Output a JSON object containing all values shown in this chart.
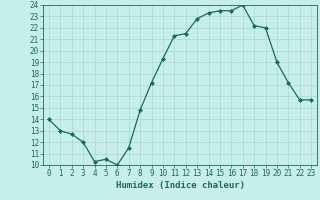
{
  "x": [
    0,
    1,
    2,
    3,
    4,
    5,
    6,
    7,
    8,
    9,
    10,
    11,
    12,
    13,
    14,
    15,
    16,
    17,
    18,
    19,
    20,
    21,
    22,
    23
  ],
  "y": [
    14.0,
    13.0,
    12.7,
    12.0,
    10.3,
    10.5,
    10.0,
    11.5,
    14.8,
    17.2,
    19.3,
    21.3,
    21.5,
    22.8,
    23.3,
    23.5,
    23.5,
    24.0,
    22.2,
    22.0,
    19.0,
    17.2,
    15.7,
    15.7
  ],
  "xlim": [
    -0.5,
    23.5
  ],
  "ylim": [
    10,
    24
  ],
  "yticks": [
    10,
    11,
    12,
    13,
    14,
    15,
    16,
    17,
    18,
    19,
    20,
    21,
    22,
    23,
    24
  ],
  "xticks": [
    0,
    1,
    2,
    3,
    4,
    5,
    6,
    7,
    8,
    9,
    10,
    11,
    12,
    13,
    14,
    15,
    16,
    17,
    18,
    19,
    20,
    21,
    22,
    23
  ],
  "xlabel": "Humidex (Indice chaleur)",
  "line_color": "#1a6b5a",
  "marker": "D",
  "marker_size": 2.0,
  "bg_color": "#c8eee8",
  "grid_color": "#a8d8cf",
  "tick_color": "#1a6b5a",
  "label_color": "#1a6b5a",
  "tick_fontsize": 5.5,
  "xlabel_fontsize": 6.5
}
